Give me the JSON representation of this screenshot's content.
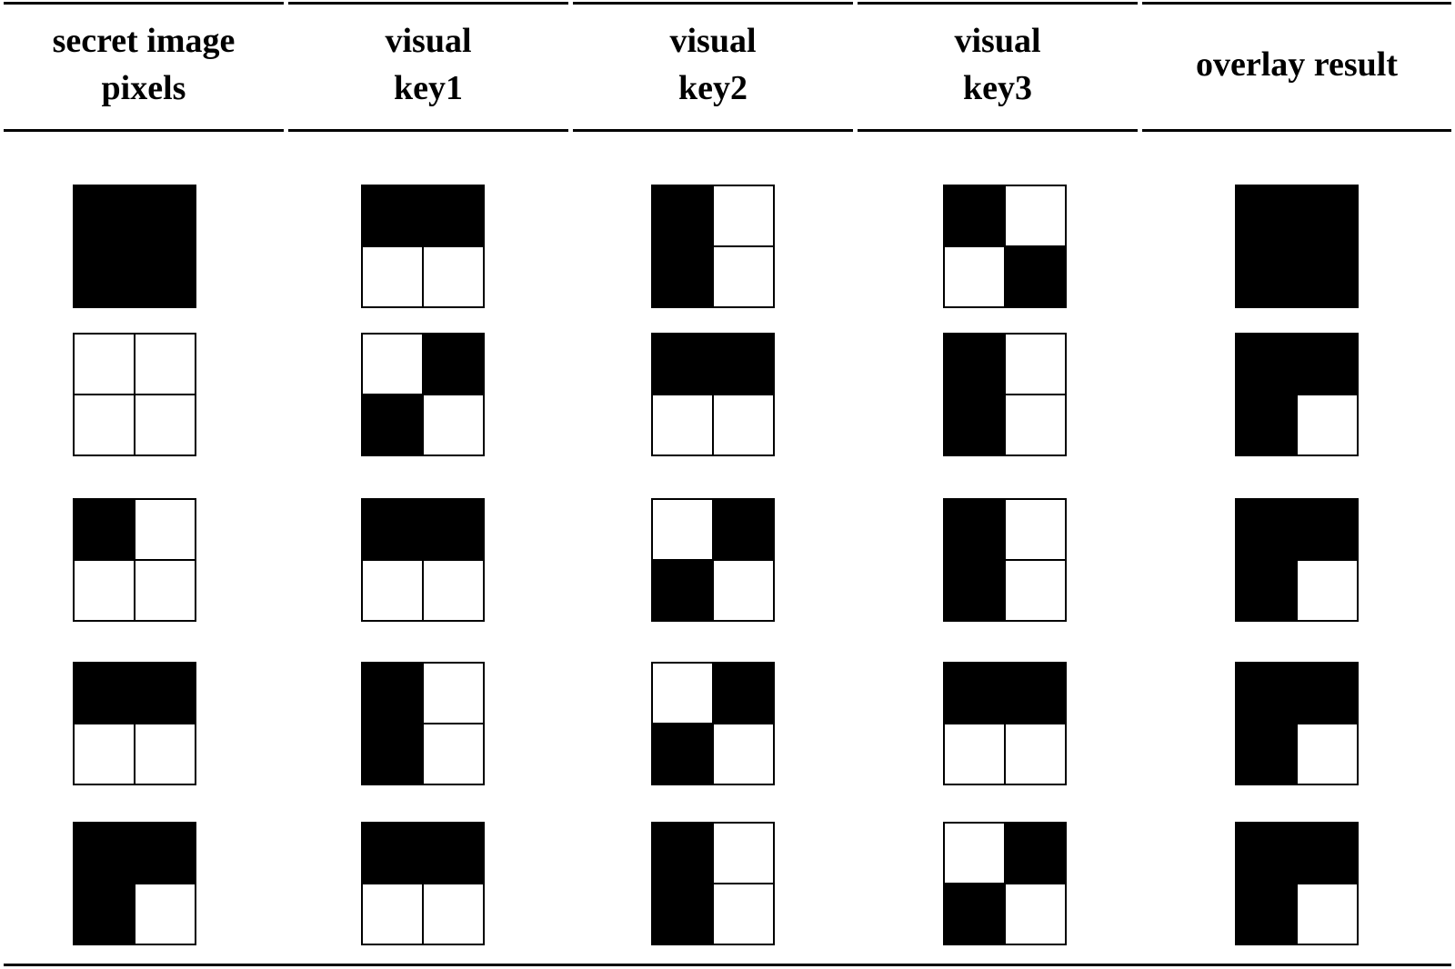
{
  "headers": [
    "secret image\npixels",
    "visual\nkey1",
    "visual\nkey2",
    "visual\nkey3",
    "overlay result"
  ],
  "pattern_legend": "Each cell lists its 2x2 subpixels as [top-left, top-right, bottom-left, bottom-right]; 1 = black, 0 = white",
  "rows": [
    [
      [
        1,
        1,
        1,
        1
      ],
      [
        1,
        1,
        0,
        0
      ],
      [
        1,
        0,
        1,
        0
      ],
      [
        1,
        0,
        0,
        1
      ],
      [
        1,
        1,
        1,
        1
      ]
    ],
    [
      [
        0,
        0,
        0,
        0
      ],
      [
        0,
        1,
        1,
        0
      ],
      [
        1,
        1,
        0,
        0
      ],
      [
        1,
        0,
        1,
        0
      ],
      [
        1,
        1,
        1,
        0
      ]
    ],
    [
      [
        1,
        0,
        0,
        0
      ],
      [
        1,
        1,
        0,
        0
      ],
      [
        0,
        1,
        1,
        0
      ],
      [
        1,
        0,
        1,
        0
      ],
      [
        1,
        1,
        1,
        0
      ]
    ],
    [
      [
        1,
        1,
        0,
        0
      ],
      [
        1,
        0,
        1,
        0
      ],
      [
        0,
        1,
        1,
        0
      ],
      [
        1,
        1,
        0,
        0
      ],
      [
        1,
        1,
        1,
        0
      ]
    ],
    [
      [
        1,
        1,
        1,
        0
      ],
      [
        1,
        1,
        0,
        0
      ],
      [
        1,
        0,
        1,
        0
      ],
      [
        0,
        1,
        1,
        0
      ],
      [
        1,
        1,
        1,
        0
      ]
    ]
  ]
}
